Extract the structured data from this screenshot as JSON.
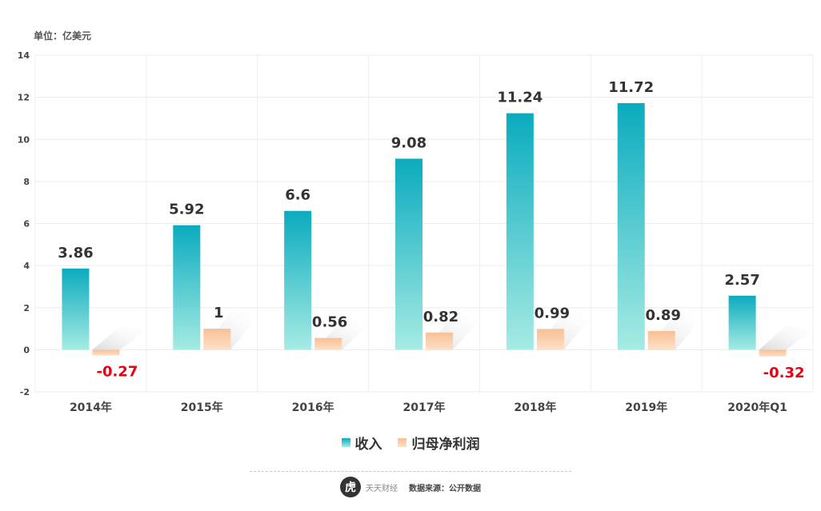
{
  "unit_label": "单位：亿美元",
  "chart_data": {
    "type": "bar",
    "categories": [
      "2014年",
      "2015年",
      "2016年",
      "2017年",
      "2018年",
      "2019年",
      "2020年Q1"
    ],
    "series": [
      {
        "name": "收入",
        "values": [
          3.86,
          5.92,
          6.6,
          9.08,
          11.24,
          11.72,
          2.57
        ],
        "color": "#13afc2"
      },
      {
        "name": "归母净利润",
        "values": [
          -0.27,
          1,
          0.56,
          0.82,
          0.99,
          0.89,
          -0.32
        ],
        "color": "#f8c8a0"
      }
    ],
    "ylim": [
      -2,
      14
    ],
    "yticks": [
      "-2",
      "0",
      "2",
      "4",
      "6",
      "8",
      "10",
      "12",
      "14"
    ],
    "data_labels": [
      [
        "3.86",
        "5.92",
        "6.6",
        "9.08",
        "11.24",
        "11.72",
        "2.57"
      ],
      [
        "-0.27",
        "1",
        "0.56",
        "0.82",
        "0.99",
        "0.89",
        "-0.32"
      ]
    ],
    "negative_label_color": "#e60012",
    "grid": true,
    "legend": "bottom-center"
  },
  "footer": {
    "logo_glyph": "虎",
    "brand": "天天财经",
    "source": "数据来源：公开数据"
  }
}
